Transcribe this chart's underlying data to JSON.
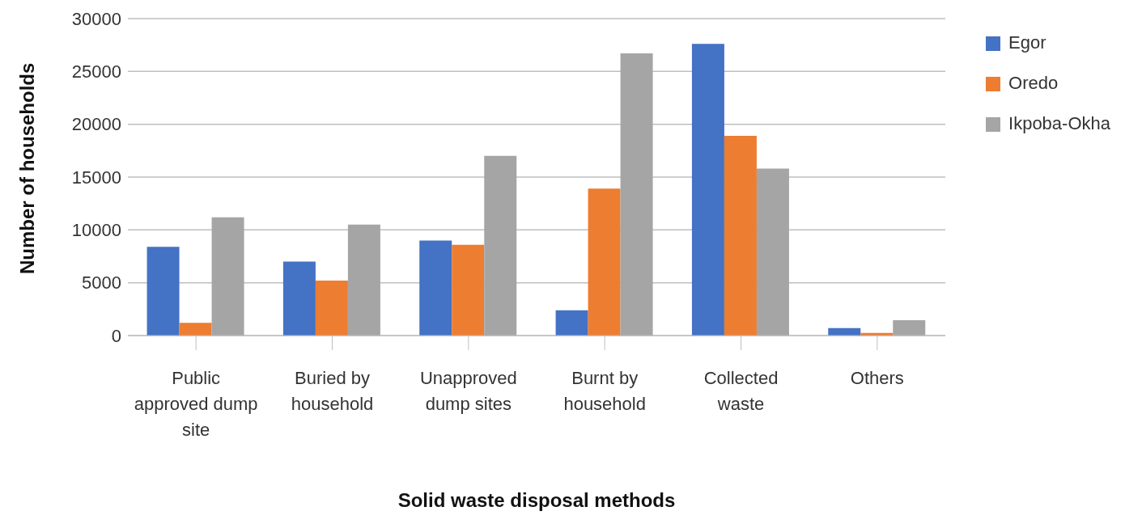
{
  "chart_data": {
    "type": "bar",
    "xlabel": "Solid waste disposal methods",
    "ylabel": "Number of households",
    "categories": [
      "Public approved dump site",
      "Buried by household",
      "Unapproved dump sites",
      "Burnt by household",
      "Collected waste",
      "Others"
    ],
    "series": [
      {
        "name": "Egor",
        "color": "#4472c4",
        "values": [
          8400,
          7000,
          9000,
          2400,
          27600,
          700
        ]
      },
      {
        "name": "Oredo",
        "color": "#ed7d31",
        "values": [
          1200,
          5200,
          8600,
          13900,
          18900,
          250
        ]
      },
      {
        "name": "Ikpoba-Okha",
        "color": "#a5a5a5",
        "values": [
          11200,
          10500,
          17000,
          26700,
          15800,
          1450
        ]
      }
    ],
    "ylim": [
      0,
      30000
    ],
    "yticks": [
      0,
      5000,
      10000,
      15000,
      20000,
      25000,
      30000
    ],
    "grid": "y",
    "legend": "top right"
  }
}
